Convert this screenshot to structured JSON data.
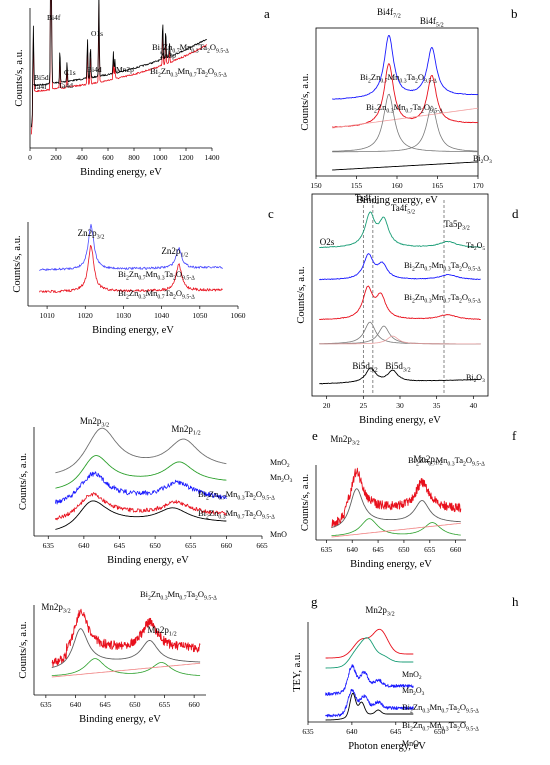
{
  "chart_data": [
    {
      "id": "a",
      "panel_letter": "a",
      "type": "line",
      "xlabel": "Binding energy, eV",
      "ylabel": "Counts/s, a.u.",
      "xlim": [
        0,
        1400
      ],
      "xticks": [
        0,
        200,
        400,
        600,
        800,
        1000,
        1200,
        1400
      ],
      "series": [
        {
          "name": "Bi2Zn0.7Mn0.3Ta2O9.5-Δ",
          "color": "#000000"
        },
        {
          "name": "Bi2Zn0.3Mn0.7Ta2O9.5-Δ",
          "color": "#e8101c"
        }
      ],
      "peak_labels": [
        {
          "text": "Bi4f",
          "x": 159
        },
        {
          "text": "O1s",
          "x": 530
        },
        {
          "text": "C1s",
          "x": 285
        },
        {
          "text": "Bi4d",
          "x": 442
        },
        {
          "text": "Mn2p",
          "x": 641
        },
        {
          "text": "Zn2p",
          "x": 1021
        },
        {
          "text": "Ta4d",
          "x": 230
        },
        {
          "text": "Bi5d",
          "x": 26
        },
        {
          "text": "Ta4f",
          "x": 26
        }
      ]
    },
    {
      "id": "b",
      "panel_letter": "b",
      "type": "line",
      "xlabel": "Binding energy, eV",
      "ylabel": "Counts/s, a.u.",
      "xlim": [
        150,
        170
      ],
      "xticks": [
        150,
        155,
        160,
        165,
        170
      ],
      "series": [
        {
          "name": "Bi2Zn0.7Mn0.3Ta2O9.5-Δ",
          "color": "#1a1aff"
        },
        {
          "name": "Bi2Zn0.3Mn0.7Ta2O9.5-Δ",
          "color": "#e8101c"
        },
        {
          "name": "Bi2O3",
          "color": "#000000"
        }
      ],
      "peaks": [
        159.0,
        164.3
      ],
      "peak_labels": [
        {
          "text": "Bi4f7/2",
          "x": 159.0
        },
        {
          "text": "Bi4f5/2",
          "x": 164.3
        }
      ]
    },
    {
      "id": "c",
      "panel_letter": "c",
      "type": "line",
      "xlabel": "Binding energy, eV",
      "ylabel": "Counts/s, a.u.",
      "xlim": [
        1005,
        1060
      ],
      "xticks": [
        1010,
        1020,
        1030,
        1040,
        1050,
        1060
      ],
      "series": [
        {
          "name": "Bi2Zn0.7Mn0.3Ta2O9.5-Δ",
          "color": "#4a4aff"
        },
        {
          "name": "Bi2Zn0.3Mn0.7Ta2O9.5-Δ",
          "color": "#e8101c"
        }
      ],
      "peaks": [
        1021.5,
        1044.5
      ],
      "peak_labels": [
        {
          "text": "Zn2p3/2",
          "x": 1021.5
        },
        {
          "text": "Zn2p1/2",
          "x": 1044.5
        }
      ]
    },
    {
      "id": "d",
      "panel_letter": "d",
      "type": "line",
      "xlabel": "Binding energy, eV",
      "ylabel": "Counts/s, a.u.",
      "xlim": [
        18,
        42
      ],
      "xticks": [
        20,
        25,
        30,
        35,
        40
      ],
      "series": [
        {
          "name": "Ta2O5",
          "color": "#1b9e77"
        },
        {
          "name": "Bi2Zn0.7Mn0.3Ta2O9.5-Δ",
          "color": "#1a1aff"
        },
        {
          "name": "Bi2Zn0.3Mn0.7Ta2O9.5-Δ",
          "color": "#e8101c"
        },
        {
          "name": "Bi2O3",
          "color": "#000000"
        }
      ],
      "peaks": [
        25.9,
        27.8,
        29.0,
        36.5
      ],
      "dashed_lines": [
        25.0,
        26.3,
        36.0
      ],
      "peak_labels": [
        {
          "text": "Ta4f7/2",
          "x": 25.9
        },
        {
          "text": "Ta4f5/2",
          "x": 28.0
        },
        {
          "text": "Ta5p3/2",
          "x": 36.0
        },
        {
          "text": "O2s",
          "x": 22.5
        },
        {
          "text": "Bi5d5/2",
          "x": 26.0
        },
        {
          "text": "Bi5d3/2",
          "x": 29.0
        }
      ]
    },
    {
      "id": "e",
      "panel_letter": "e",
      "type": "line",
      "xlabel": "Binding energy, eV",
      "ylabel": "Counts/s, a.u.",
      "xlim": [
        633,
        665
      ],
      "xticks": [
        635,
        640,
        645,
        650,
        655,
        660,
        665
      ],
      "series": [
        {
          "name": "MnO2",
          "color": "#707070"
        },
        {
          "name": "Mn2O3",
          "color": "#2ca02c"
        },
        {
          "name": "Bi2Zn0.7Mn0.3Ta2O9.5-Δ",
          "color": "#1a1aff"
        },
        {
          "name": "Bi2Zn0.3Mn0.7Ta2O9.5-Δ",
          "color": "#e8101c"
        },
        {
          "name": "MnO",
          "color": "#000000"
        }
      ],
      "peaks": [
        641.5,
        653.5
      ],
      "peak_labels": [
        {
          "text": "Mn2p3/2",
          "x": 641.5
        },
        {
          "text": "Mn2p1/2",
          "x": 653.5
        }
      ]
    },
    {
      "id": "f",
      "panel_letter": "f",
      "type": "line",
      "title": "Bi2Zn0.7Mn0.3Ta2O9.5-Δ",
      "xlabel": "Binding energy, eV",
      "ylabel": "Counts/s, a.u.",
      "xlim": [
        633,
        662
      ],
      "xticks": [
        635,
        640,
        645,
        650,
        655,
        660
      ],
      "series": [
        {
          "name": "",
          "color": "#e8101c"
        },
        {
          "name": "",
          "color": "#606060"
        },
        {
          "name": "",
          "color": "#2ca02c"
        },
        {
          "name": "",
          "color": "#f08080"
        }
      ],
      "peaks": [
        640.8,
        653.5
      ],
      "peak_labels": [
        {
          "text": "Mn2p3/2",
          "x": 640.8
        },
        {
          "text": "Mn2p1/2",
          "x": 653.5
        }
      ]
    },
    {
      "id": "g",
      "panel_letter": "g",
      "type": "line",
      "title": "Bi2Zn0.3Mn0.7Ta2O9.5-Δ",
      "xlabel": "Binding energy, eV",
      "ylabel": "Counts/s, a.u.",
      "xlim": [
        633,
        662
      ],
      "xticks": [
        635,
        640,
        645,
        650,
        655,
        660
      ],
      "series": [
        {
          "name": "",
          "color": "#e8101c"
        },
        {
          "name": "",
          "color": "#606060"
        },
        {
          "name": "",
          "color": "#2ca02c"
        },
        {
          "name": "",
          "color": "#f08080"
        }
      ],
      "peaks": [
        640.8,
        652.5
      ],
      "peak_labels": [
        {
          "text": "Mn2p3/2",
          "x": 640.8
        },
        {
          "text": "Mn2p1/2",
          "x": 652.5
        }
      ]
    },
    {
      "id": "h",
      "panel_letter": "h",
      "type": "line",
      "xlabel": "Photon energy, eV",
      "ylabel": "TEY, a.u.",
      "xlim": [
        635,
        653
      ],
      "xticks": [
        635,
        640,
        645,
        650
      ],
      "series": [
        {
          "name": "MnO2",
          "color": "#e8101c"
        },
        {
          "name": "Mn2O3",
          "color": "#1b9e77"
        },
        {
          "name": "Bi2Zn0.3Mn0.7Ta2O9.5-Δ",
          "color": "#1a1aff"
        },
        {
          "name": "Bi2Zn0.7Mn0.3Ta2O9.5-Δ",
          "color": "#1a1aff"
        },
        {
          "name": "MnO",
          "color": "#000000"
        }
      ],
      "peaks": [
        640.0,
        641.3,
        643.0
      ],
      "peak_labels": [
        {
          "text": "Mn2p3/2",
          "x": 641.3
        }
      ]
    }
  ]
}
